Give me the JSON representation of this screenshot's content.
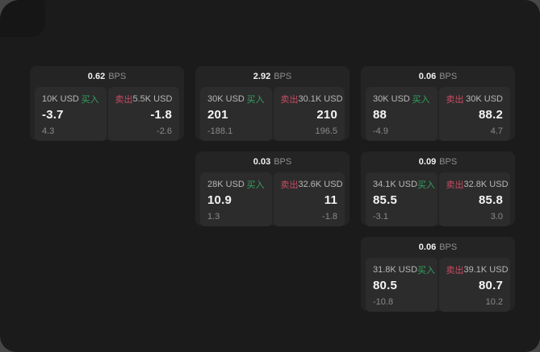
{
  "labels": {
    "bps": "BPS",
    "buy": "买入",
    "sell": "卖出"
  },
  "colors": {
    "buy_green": "#31a25f",
    "sell_red": "#c94b63",
    "panel_bg": "#1b1b1b",
    "card_bg": "#242424",
    "tile_bg": "#2c2c2c"
  },
  "cards": [
    {
      "bps": "0.62",
      "buy": {
        "amount": "10K USD",
        "value": "-3.7",
        "sub": "4.3"
      },
      "sell": {
        "amount": "5.5K USD",
        "value": "-1.8",
        "sub": "-2.6"
      }
    },
    {
      "bps": "2.92",
      "buy": {
        "amount": "30K USD",
        "value": "201",
        "sub": "-188.1"
      },
      "sell": {
        "amount": "30.1K USD",
        "value": "210",
        "sub": "196.5"
      }
    },
    {
      "bps": "0.06",
      "buy": {
        "amount": "30K USD",
        "value": "88",
        "sub": "-4.9"
      },
      "sell": {
        "amount": "30K USD",
        "value": "88.2",
        "sub": "4.7"
      }
    },
    {
      "bps": "0.03",
      "buy": {
        "amount": "28K USD",
        "value": "10.9",
        "sub": "1.3"
      },
      "sell": {
        "amount": "32.6K USD",
        "value": "11",
        "sub": "-1.8"
      }
    },
    {
      "bps": "0.09",
      "buy": {
        "amount": "34.1K USD",
        "value": "85.5",
        "sub": "-3.1"
      },
      "sell": {
        "amount": "32.8K USD",
        "value": "85.8",
        "sub": "3.0"
      }
    },
    {
      "bps": "0.06",
      "buy": {
        "amount": "31.8K USD",
        "value": "80.5",
        "sub": "-10.8"
      },
      "sell": {
        "amount": "39.1K USD",
        "value": "80.7",
        "sub": "10.2"
      }
    }
  ]
}
